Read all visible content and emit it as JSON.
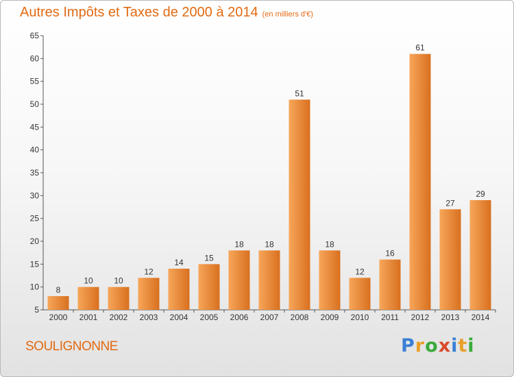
{
  "title": {
    "main": "Autres Impôts et Taxes de 2000 à 2014",
    "unit": "(en milliers d'€)"
  },
  "commune": "SOULIGNONNE",
  "logo": {
    "text": "Proxiti",
    "colors": [
      "#3a7fd6",
      "#e8a02a",
      "#3aaa3a",
      "#d94a2a",
      "#3a7fd6",
      "#e8a02a",
      "#3aaa3a"
    ]
  },
  "colors": {
    "bar_light": "#f7a65a",
    "bar_dark": "#d8701f",
    "label": "#333333",
    "accent": "#e26a12"
  },
  "chart_data": {
    "type": "bar",
    "title": "Autres Impôts et Taxes de 2000 à 2014",
    "subtitle": "(en milliers d'€)",
    "categories": [
      "2000",
      "2001",
      "2002",
      "2003",
      "2004",
      "2005",
      "2006",
      "2007",
      "2008",
      "2009",
      "2010",
      "2011",
      "2012",
      "2013",
      "2014"
    ],
    "values": [
      8,
      10,
      10,
      12,
      14,
      15,
      18,
      18,
      51,
      18,
      12,
      16,
      61,
      27,
      29
    ],
    "xlabel": "",
    "ylabel": "",
    "ylim": [
      5,
      65
    ],
    "yticks": [
      5,
      10,
      15,
      20,
      25,
      30,
      35,
      40,
      45,
      50,
      55,
      60,
      65
    ],
    "grid": false,
    "data_labels": true
  }
}
